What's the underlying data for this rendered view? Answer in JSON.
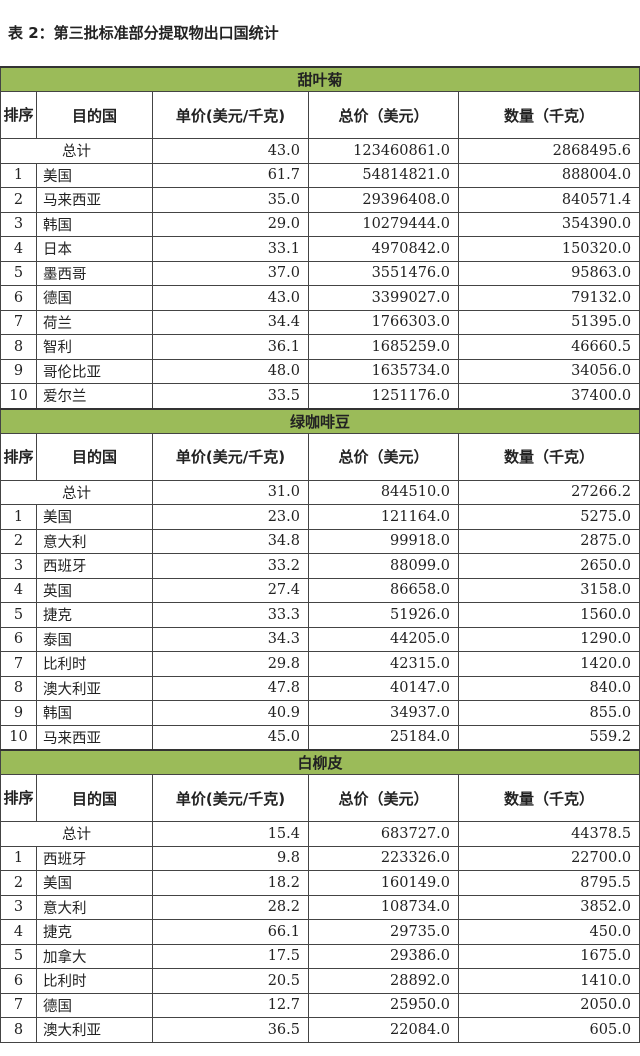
{
  "title": "表 2：第三批标准部分提取物出口国统计",
  "columns": {
    "rank": "排序",
    "country": "目的国",
    "unit_price": "单价(美元/千克)",
    "total_price": "总价（美元）",
    "quantity": "数量（千克）"
  },
  "total_label": "总计",
  "sections": [
    {
      "name": "甜叶菊",
      "total": {
        "unit_price": "43.0",
        "total_price": "123460861.0",
        "quantity": "2868495.6"
      },
      "rows": [
        {
          "rank": "1",
          "country": "美国",
          "unit_price": "61.7",
          "total_price": "54814821.0",
          "quantity": "888004.0"
        },
        {
          "rank": "2",
          "country": "马来西亚",
          "unit_price": "35.0",
          "total_price": "29396408.0",
          "quantity": "840571.4"
        },
        {
          "rank": "3",
          "country": "韩国",
          "unit_price": "29.0",
          "total_price": "10279444.0",
          "quantity": "354390.0"
        },
        {
          "rank": "4",
          "country": "日本",
          "unit_price": "33.1",
          "total_price": "4970842.0",
          "quantity": "150320.0"
        },
        {
          "rank": "5",
          "country": "墨西哥",
          "unit_price": "37.0",
          "total_price": "3551476.0",
          "quantity": "95863.0"
        },
        {
          "rank": "6",
          "country": "德国",
          "unit_price": "43.0",
          "total_price": "3399027.0",
          "quantity": "79132.0"
        },
        {
          "rank": "7",
          "country": "荷兰",
          "unit_price": "34.4",
          "total_price": "1766303.0",
          "quantity": "51395.0"
        },
        {
          "rank": "8",
          "country": "智利",
          "unit_price": "36.1",
          "total_price": "1685259.0",
          "quantity": "46660.5"
        },
        {
          "rank": "9",
          "country": "哥伦比亚",
          "unit_price": "48.0",
          "total_price": "1635734.0",
          "quantity": "34056.0"
        },
        {
          "rank": "10",
          "country": "爱尔兰",
          "unit_price": "33.5",
          "total_price": "1251176.0",
          "quantity": "37400.0"
        }
      ]
    },
    {
      "name": "绿咖啡豆",
      "total": {
        "unit_price": "31.0",
        "total_price": "844510.0",
        "quantity": "27266.2"
      },
      "rows": [
        {
          "rank": "1",
          "country": "美国",
          "unit_price": "23.0",
          "total_price": "121164.0",
          "quantity": "5275.0"
        },
        {
          "rank": "2",
          "country": "意大利",
          "unit_price": "34.8",
          "total_price": "99918.0",
          "quantity": "2875.0"
        },
        {
          "rank": "3",
          "country": "西班牙",
          "unit_price": "33.2",
          "total_price": "88099.0",
          "quantity": "2650.0"
        },
        {
          "rank": "4",
          "country": "英国",
          "unit_price": "27.4",
          "total_price": "86658.0",
          "quantity": "3158.0"
        },
        {
          "rank": "5",
          "country": "捷克",
          "unit_price": "33.3",
          "total_price": "51926.0",
          "quantity": "1560.0"
        },
        {
          "rank": "6",
          "country": "泰国",
          "unit_price": "34.3",
          "total_price": "44205.0",
          "quantity": "1290.0"
        },
        {
          "rank": "7",
          "country": "比利时",
          "unit_price": "29.8",
          "total_price": "42315.0",
          "quantity": "1420.0"
        },
        {
          "rank": "8",
          "country": "澳大利亚",
          "unit_price": "47.8",
          "total_price": "40147.0",
          "quantity": "840.0"
        },
        {
          "rank": "9",
          "country": "韩国",
          "unit_price": "40.9",
          "total_price": "34937.0",
          "quantity": "855.0"
        },
        {
          "rank": "10",
          "country": "马来西亚",
          "unit_price": "45.0",
          "total_price": "25184.0",
          "quantity": "559.2"
        }
      ]
    },
    {
      "name": "白柳皮",
      "total": {
        "unit_price": "15.4",
        "total_price": "683727.0",
        "quantity": "44378.5"
      },
      "rows": [
        {
          "rank": "1",
          "country": "西班牙",
          "unit_price": "9.8",
          "total_price": "223326.0",
          "quantity": "22700.0"
        },
        {
          "rank": "2",
          "country": "美国",
          "unit_price": "18.2",
          "total_price": "160149.0",
          "quantity": "8795.5"
        },
        {
          "rank": "3",
          "country": "意大利",
          "unit_price": "28.2",
          "total_price": "108734.0",
          "quantity": "3852.0"
        },
        {
          "rank": "4",
          "country": "捷克",
          "unit_price": "66.1",
          "total_price": "29735.0",
          "quantity": "450.0"
        },
        {
          "rank": "5",
          "country": "加拿大",
          "unit_price": "17.5",
          "total_price": "29386.0",
          "quantity": "1675.0"
        },
        {
          "rank": "6",
          "country": "比利时",
          "unit_price": "20.5",
          "total_price": "28892.0",
          "quantity": "1410.0"
        },
        {
          "rank": "7",
          "country": "德国",
          "unit_price": "12.7",
          "total_price": "25950.0",
          "quantity": "2050.0"
        },
        {
          "rank": "8",
          "country": "澳大利亚",
          "unit_price": "36.5",
          "total_price": "22084.0",
          "quantity": "605.0"
        }
      ]
    }
  ],
  "colors": {
    "section_header_bg": "#9bbb59"
  }
}
